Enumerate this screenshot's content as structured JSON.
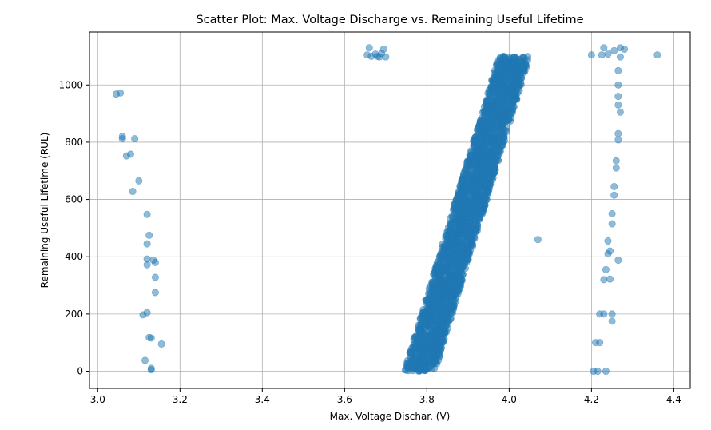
{
  "chart_data": {
    "type": "scatter",
    "title": "Scatter Plot: Max. Voltage Discharge vs. Remaining Useful Lifetime",
    "xlabel": "Max. Voltage Dischar. (V)",
    "ylabel": "Remaining Useful Lifetime (RUL)",
    "xlim": [
      2.98,
      4.44
    ],
    "ylim": [
      -60,
      1185
    ],
    "xticks": [
      3.0,
      3.2,
      3.4,
      3.6,
      3.8,
      4.0,
      4.2,
      4.4
    ],
    "xtick_labels": [
      "3.0",
      "3.2",
      "3.4",
      "3.6",
      "3.8",
      "4.0",
      "4.2",
      "4.4"
    ],
    "yticks": [
      0,
      200,
      400,
      600,
      800,
      1000
    ],
    "ytick_labels": [
      "0",
      "200",
      "400",
      "600",
      "800",
      "1000"
    ],
    "grid": true,
    "color": "#1f77b4",
    "alpha": 0.5,
    "series": [
      {
        "points": [
          [
            3.045,
            968
          ],
          [
            3.055,
            972
          ],
          [
            3.06,
            820
          ],
          [
            3.06,
            812
          ],
          [
            3.07,
            752
          ],
          [
            3.08,
            758
          ],
          [
            3.09,
            812
          ],
          [
            3.1,
            665
          ],
          [
            3.085,
            628
          ],
          [
            3.12,
            548
          ],
          [
            3.125,
            475
          ],
          [
            3.12,
            445
          ],
          [
            3.12,
            392
          ],
          [
            3.12,
            372
          ],
          [
            3.135,
            388
          ],
          [
            3.14,
            380
          ],
          [
            3.14,
            328
          ],
          [
            3.14,
            275
          ],
          [
            3.11,
            197
          ],
          [
            3.12,
            205
          ],
          [
            3.125,
            118
          ],
          [
            3.13,
            116
          ],
          [
            3.155,
            95
          ],
          [
            3.115,
            38
          ],
          [
            3.13,
            10
          ],
          [
            3.13,
            5
          ],
          [
            3.655,
            1105
          ],
          [
            3.66,
            1130
          ],
          [
            3.665,
            1100
          ],
          [
            3.68,
            1100
          ],
          [
            3.69,
            1110
          ],
          [
            3.695,
            1125
          ],
          [
            3.7,
            1098
          ],
          [
            3.675,
            1108
          ],
          [
            3.685,
            1098
          ],
          [
            4.07,
            460
          ],
          [
            4.2,
            1105
          ],
          [
            4.225,
            1105
          ],
          [
            4.23,
            1130
          ],
          [
            4.24,
            1108
          ],
          [
            4.255,
            1120
          ],
          [
            4.27,
            1130
          ],
          [
            4.28,
            1125
          ],
          [
            4.27,
            1098
          ],
          [
            4.36,
            1105
          ],
          [
            4.265,
            1050
          ],
          [
            4.265,
            1000
          ],
          [
            4.265,
            960
          ],
          [
            4.265,
            930
          ],
          [
            4.27,
            905
          ],
          [
            4.265,
            830
          ],
          [
            4.265,
            808
          ],
          [
            4.26,
            735
          ],
          [
            4.26,
            710
          ],
          [
            4.255,
            645
          ],
          [
            4.255,
            615
          ],
          [
            4.25,
            550
          ],
          [
            4.25,
            515
          ],
          [
            4.265,
            388
          ],
          [
            4.24,
            455
          ],
          [
            4.245,
            420
          ],
          [
            4.24,
            410
          ],
          [
            4.235,
            355
          ],
          [
            4.23,
            320
          ],
          [
            4.245,
            322
          ],
          [
            4.25,
            200
          ],
          [
            4.22,
            200
          ],
          [
            4.23,
            200
          ],
          [
            4.25,
            175
          ],
          [
            4.21,
            100
          ],
          [
            4.22,
            100
          ],
          [
            4.205,
            0
          ],
          [
            4.215,
            0
          ],
          [
            4.235,
            0
          ]
        ]
      }
    ],
    "band": {
      "rul_min": 0,
      "rul_max": 1100,
      "voltage_low_at_rul_min": 3.745,
      "voltage_high_at_rul_min": 3.82,
      "voltage_low_at_rul_max": 3.975,
      "voltage_high_at_rul_max": 4.05,
      "count": 2600
    }
  }
}
